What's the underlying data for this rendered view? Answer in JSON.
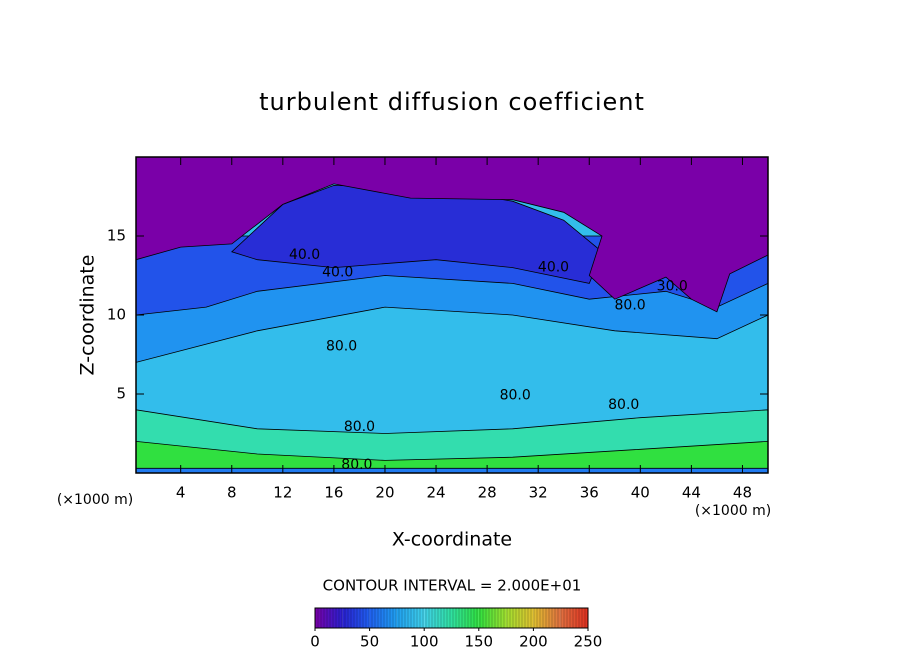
{
  "chart_data": {
    "type": "contour",
    "title": "turbulent diffusion coefficient",
    "x_label": "X-coordinate",
    "y_label": "Z-coordinate",
    "x_unit_label": "(×1000 m)",
    "contour_interval_label": "CONTOUR INTERVAL = 2.000E+01",
    "xlim": [
      0.5,
      50
    ],
    "ylim": [
      0,
      20
    ],
    "xticks": [
      4,
      8,
      12,
      16,
      20,
      24,
      28,
      32,
      36,
      40,
      44,
      48
    ],
    "yticks": [
      5,
      10,
      15
    ],
    "regions": [
      {
        "value": 90,
        "points": [
          [
            0.5,
            0
          ],
          [
            50,
            0
          ],
          [
            50,
            20
          ],
          [
            0.5,
            20
          ]
        ]
      },
      {
        "value": 70,
        "points": [
          [
            0.5,
            7
          ],
          [
            10,
            9
          ],
          [
            20,
            10.5
          ],
          [
            30,
            10
          ],
          [
            38,
            9
          ],
          [
            46,
            8.5
          ],
          [
            50,
            10
          ],
          [
            50,
            14
          ],
          [
            0.5,
            14
          ]
        ]
      },
      {
        "value": 45,
        "points": [
          [
            0.5,
            10
          ],
          [
            6,
            10.5
          ],
          [
            10,
            11.5
          ],
          [
            20,
            12.5
          ],
          [
            30,
            12
          ],
          [
            36,
            11
          ],
          [
            42,
            11.5
          ],
          [
            46,
            10.5
          ],
          [
            50,
            12
          ],
          [
            50,
            15
          ],
          [
            0.5,
            15
          ]
        ]
      },
      {
        "value": 30,
        "points": [
          [
            8,
            14
          ],
          [
            12,
            17
          ],
          [
            16,
            18.2
          ],
          [
            24,
            18
          ],
          [
            30,
            17.2
          ],
          [
            34,
            16
          ],
          [
            37,
            14
          ],
          [
            36,
            12
          ],
          [
            30,
            13
          ],
          [
            24,
            13.5
          ],
          [
            16,
            13
          ],
          [
            10,
            13.5
          ]
        ]
      },
      {
        "value": 0,
        "points": [
          [
            0.5,
            20
          ],
          [
            50,
            20
          ],
          [
            50,
            13.8
          ],
          [
            47,
            12.6
          ],
          [
            46,
            10.2
          ],
          [
            44,
            11
          ],
          [
            42,
            12.4
          ],
          [
            38,
            11
          ],
          [
            36,
            12.5
          ],
          [
            37,
            15
          ],
          [
            34,
            16.5
          ],
          [
            30,
            17.3
          ],
          [
            22,
            17.4
          ],
          [
            16,
            18.3
          ],
          [
            12,
            17
          ],
          [
            8,
            14.5
          ],
          [
            4,
            14.3
          ],
          [
            0.5,
            13.5
          ]
        ]
      },
      {
        "value": 120,
        "points": [
          [
            0.5,
            0
          ],
          [
            50,
            0
          ],
          [
            50,
            4
          ],
          [
            40,
            3.5
          ],
          [
            30,
            2.8
          ],
          [
            20,
            2.5
          ],
          [
            10,
            2.8
          ],
          [
            0.5,
            4
          ]
        ]
      },
      {
        "value": 150,
        "points": [
          [
            0.5,
            0
          ],
          [
            50,
            0
          ],
          [
            50,
            2
          ],
          [
            40,
            1.5
          ],
          [
            30,
            1
          ],
          [
            20,
            0.8
          ],
          [
            10,
            1.2
          ],
          [
            0.5,
            2
          ]
        ]
      },
      {
        "value": 60,
        "points": [
          [
            0.5,
            0
          ],
          [
            50,
            0
          ],
          [
            50,
            0.3
          ],
          [
            0.5,
            0.3
          ]
        ]
      }
    ],
    "contour_labels": [
      {
        "x": 13.7,
        "y": 13.8,
        "value": 40,
        "label": "40.0"
      },
      {
        "x": 16.3,
        "y": 12.7,
        "value": 40,
        "label": "40.0"
      },
      {
        "x": 33.2,
        "y": 13.0,
        "value": 40,
        "label": "40.0"
      },
      {
        "x": 42.5,
        "y": 11.8,
        "value": 30,
        "label": "30.0"
      },
      {
        "x": 39.2,
        "y": 10.6,
        "value": 80,
        "label": "80.0"
      },
      {
        "x": 16.6,
        "y": 8.0,
        "value": 80,
        "label": "80.0"
      },
      {
        "x": 30.2,
        "y": 4.9,
        "value": 80,
        "label": "80.0"
      },
      {
        "x": 38.7,
        "y": 4.3,
        "value": 80,
        "label": "80.0"
      },
      {
        "x": 18.0,
        "y": 2.9,
        "value": 80,
        "label": "80.0"
      },
      {
        "x": 17.8,
        "y": 0.5,
        "value": 80,
        "label": "80.0"
      }
    ],
    "colorbar": {
      "clim": [
        0,
        250
      ],
      "ticks": [
        0,
        50,
        100,
        150,
        200,
        250
      ],
      "stops": [
        {
          "value": 0,
          "color": "#7a00a8"
        },
        {
          "value": 25,
          "color": "#2a20d0"
        },
        {
          "value": 50,
          "color": "#2060f0"
        },
        {
          "value": 75,
          "color": "#20a0f0"
        },
        {
          "value": 100,
          "color": "#40d0e8"
        },
        {
          "value": 125,
          "color": "#30e0a0"
        },
        {
          "value": 150,
          "color": "#30e040"
        },
        {
          "value": 175,
          "color": "#a0e030"
        },
        {
          "value": 200,
          "color": "#e0c030"
        },
        {
          "value": 225,
          "color": "#e07040"
        },
        {
          "value": 250,
          "color": "#e03020"
        }
      ]
    }
  }
}
